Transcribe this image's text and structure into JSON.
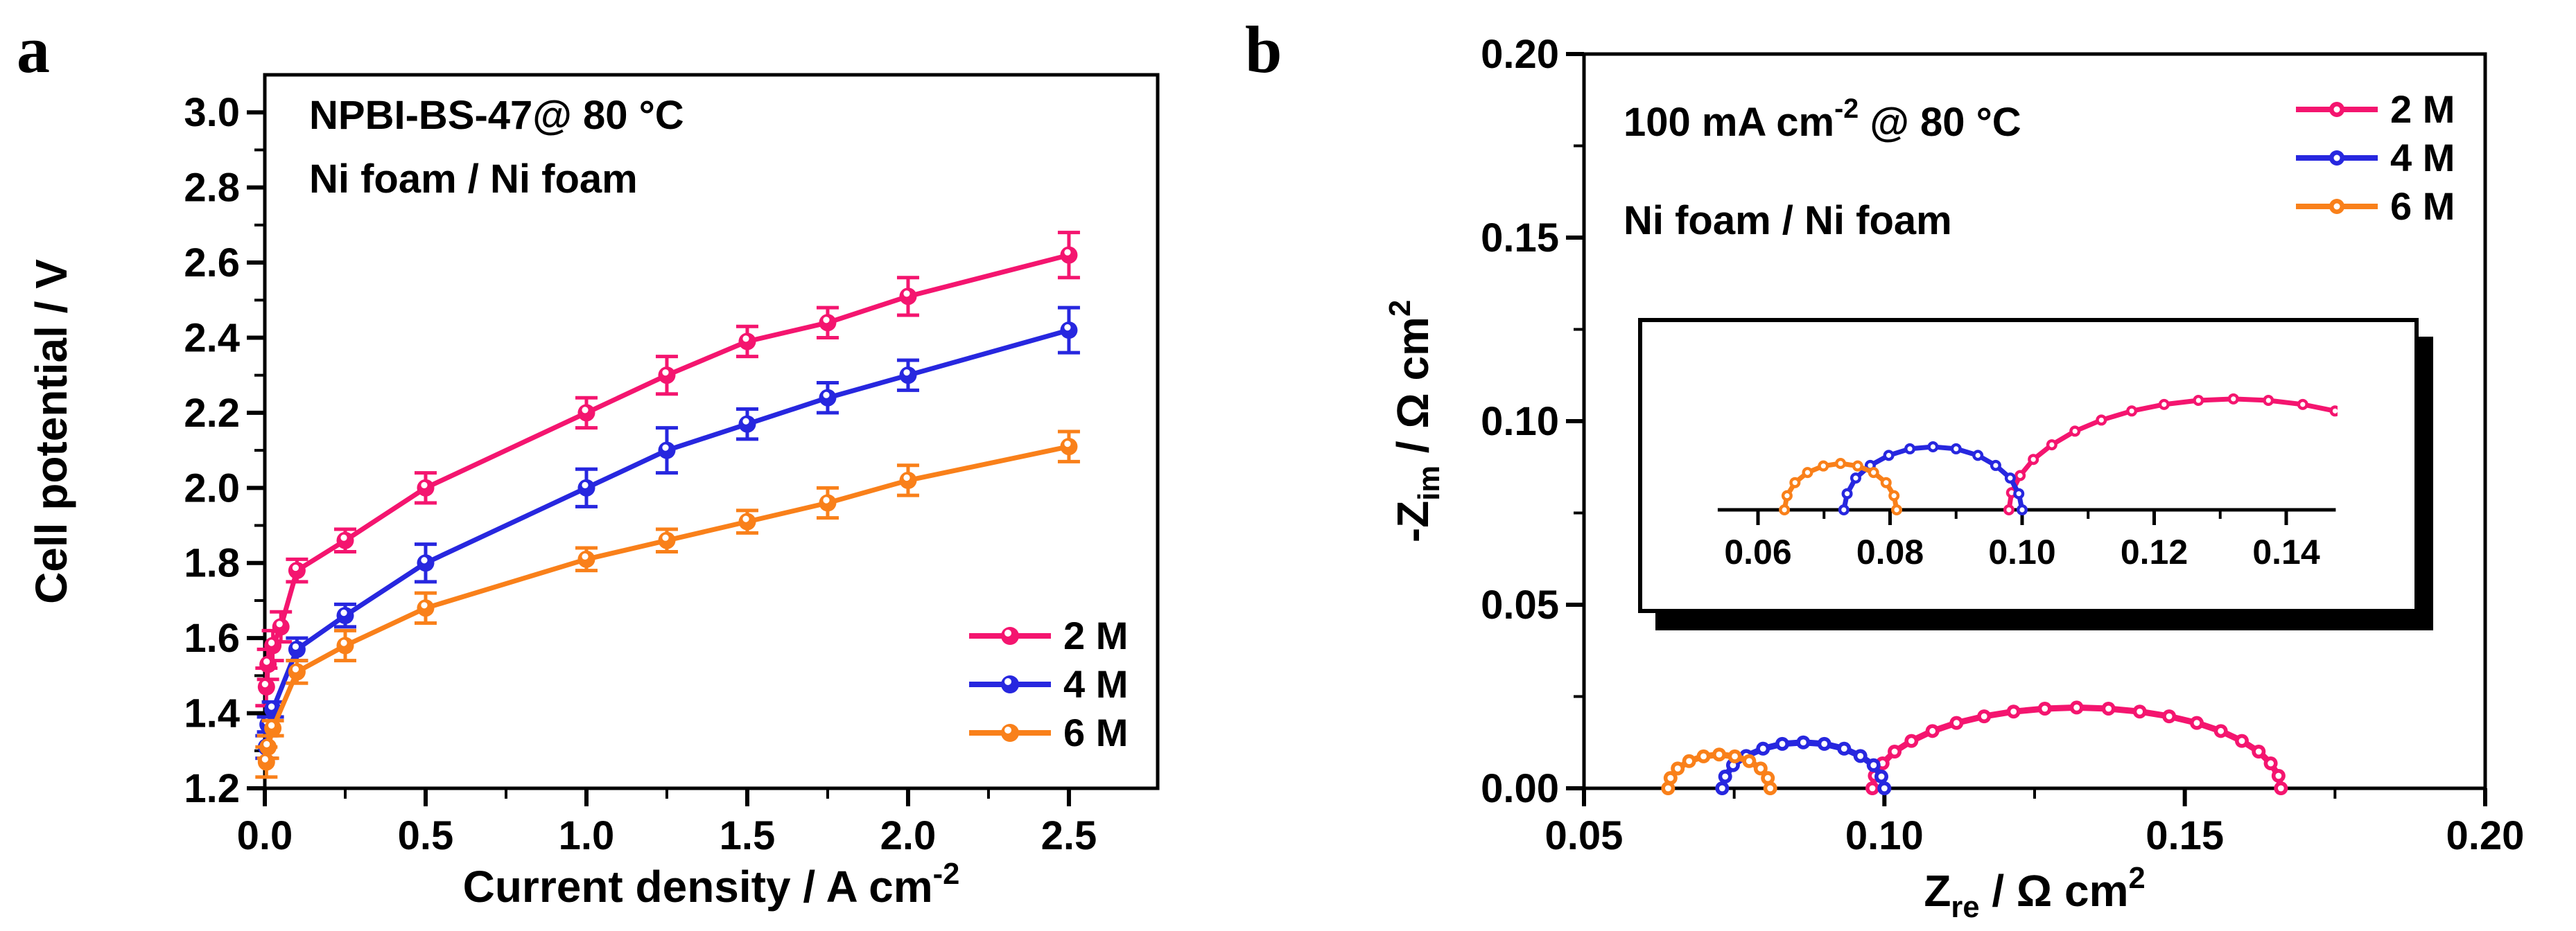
{
  "figure": {
    "background": "#ffffff",
    "panels": [
      {
        "letter": "a"
      },
      {
        "letter": "b"
      }
    ]
  },
  "chart_data": [
    {
      "id": "a",
      "type": "line",
      "annotations": [
        "NPBI-BS-47@ 80 °C",
        "Ni foam / Ni foam"
      ],
      "xlabel": "Current density / A cm⁻²",
      "xlabel_rich": [
        [
          "Current density / A cm",
          0
        ],
        [
          "-2",
          -1
        ]
      ],
      "ylabel": "Cell potential / V",
      "xlim": [
        0,
        2.776
      ],
      "ylim": [
        1.2,
        3.1
      ],
      "xticks": [
        0,
        0.5,
        1.0,
        1.5,
        2.0,
        2.5
      ],
      "xtick_labels": [
        "0.0",
        "0.5",
        "1.0",
        "1.5",
        "2.0",
        "2.5"
      ],
      "xminor": [
        0.25,
        0.75,
        1.25,
        1.75,
        2.25
      ],
      "yticks": [
        1.2,
        1.4,
        1.6,
        1.8,
        2.0,
        2.2,
        2.4,
        2.6,
        2.8,
        3.0
      ],
      "ytick_labels": [
        "1.2",
        "1.4",
        "1.6",
        "1.8",
        "2.0",
        "2.2",
        "2.4",
        "2.6",
        "2.8",
        "3.0"
      ],
      "yminor": [
        1.3,
        1.5,
        1.7,
        1.9,
        2.1,
        2.3,
        2.5,
        2.7,
        2.9
      ],
      "grid": false,
      "legend_position": "lower right",
      "series": [
        {
          "name": "2 M",
          "color": "#F4156F",
          "x": [
            0.005,
            0.01,
            0.025,
            0.05,
            0.1,
            0.25,
            0.5,
            1.0,
            1.25,
            1.5,
            1.75,
            2.0,
            2.5
          ],
          "y": [
            1.47,
            1.53,
            1.58,
            1.63,
            1.78,
            1.86,
            2.0,
            2.2,
            2.3,
            2.39,
            2.44,
            2.51,
            2.62
          ],
          "err": [
            0.05,
            0.04,
            0.04,
            0.04,
            0.03,
            0.03,
            0.04,
            0.04,
            0.05,
            0.04,
            0.04,
            0.05,
            0.06
          ]
        },
        {
          "name": "4 M",
          "color": "#2727DF",
          "x": [
            0.005,
            0.01,
            0.025,
            0.1,
            0.25,
            0.5,
            1.0,
            1.25,
            1.5,
            1.75,
            2.0,
            2.5
          ],
          "y": [
            1.31,
            1.37,
            1.41,
            1.57,
            1.66,
            1.8,
            2.0,
            2.1,
            2.17,
            2.24,
            2.3,
            2.42
          ],
          "err": [
            0.03,
            0.02,
            0.02,
            0.03,
            0.03,
            0.05,
            0.05,
            0.06,
            0.04,
            0.04,
            0.04,
            0.06
          ]
        },
        {
          "name": "6 M",
          "color": "#F9801A",
          "x": [
            0.005,
            0.01,
            0.025,
            0.1,
            0.25,
            0.5,
            1.0,
            1.25,
            1.5,
            1.75,
            2.0,
            2.5
          ],
          "y": [
            1.27,
            1.31,
            1.36,
            1.51,
            1.58,
            1.68,
            1.81,
            1.86,
            1.91,
            1.96,
            2.02,
            2.11
          ],
          "err": [
            0.04,
            0.03,
            0.02,
            0.03,
            0.04,
            0.04,
            0.03,
            0.03,
            0.03,
            0.04,
            0.04,
            0.04
          ]
        }
      ]
    },
    {
      "id": "b",
      "type": "scatter",
      "annotations": [
        "100 mA cm⁻² @ 80 °C",
        "Ni foam / Ni foam"
      ],
      "annotation_rich": [
        [
          "100 mA cm",
          0
        ],
        [
          "-2",
          -1
        ],
        [
          " @ 80 °C",
          0
        ]
      ],
      "xlabel": "Zᵣₑ / Ω cm²",
      "xlabel_rich": [
        [
          "Z",
          0
        ],
        [
          "re",
          1
        ],
        [
          " / Ω cm",
          0
        ],
        [
          "2",
          -1
        ]
      ],
      "ylabel": "-Zᵢₘ / Ω cm²",
      "ylabel_rich": [
        [
          "-Z",
          0
        ],
        [
          "im",
          1
        ],
        [
          " / Ω cm",
          0
        ],
        [
          "2",
          -1
        ]
      ],
      "xlim": [
        0.05,
        0.2
      ],
      "ylim": [
        0,
        0.2
      ],
      "xticks": [
        0.05,
        0.1,
        0.15,
        0.2
      ],
      "xtick_labels": [
        "0.05",
        "0.10",
        "0.15",
        "0.20"
      ],
      "xminor": [
        0.075,
        0.125,
        0.175
      ],
      "yticks": [
        0,
        0.05,
        0.1,
        0.15,
        0.2
      ],
      "ytick_labels": [
        "0.00",
        "0.05",
        "0.10",
        "0.15",
        "0.20"
      ],
      "yminor": [
        0.025,
        0.075,
        0.125,
        0.175
      ],
      "grid": false,
      "legend_position": "upper right",
      "series": [
        {
          "name": "2 M",
          "color": "#F4156F",
          "x": [
            0.098,
            0.0984,
            0.0997,
            0.1017,
            0.1045,
            0.108,
            0.112,
            0.1166,
            0.1215,
            0.1267,
            0.132,
            0.1373,
            0.1425,
            0.1474,
            0.152,
            0.156,
            0.1595,
            0.1623,
            0.1643,
            0.1656,
            0.166
          ],
          "y": [
            0.0,
            0.0034,
            0.0068,
            0.01,
            0.0129,
            0.0156,
            0.0178,
            0.0196,
            0.0209,
            0.0217,
            0.022,
            0.0217,
            0.0209,
            0.0196,
            0.0178,
            0.0156,
            0.0129,
            0.01,
            0.0068,
            0.0034,
            0.0
          ]
        },
        {
          "name": "4 M",
          "color": "#2727DF",
          "x": [
            0.073,
            0.0735,
            0.0748,
            0.077,
            0.0798,
            0.083,
            0.0865,
            0.09,
            0.0933,
            0.096,
            0.0982,
            0.0995,
            0.1
          ],
          "y": [
            0.0,
            0.0032,
            0.0063,
            0.0088,
            0.0108,
            0.0121,
            0.0125,
            0.0121,
            0.0108,
            0.0088,
            0.0063,
            0.0032,
            0.0
          ]
        },
        {
          "name": "6 M",
          "color": "#F9801A",
          "x": [
            0.064,
            0.0644,
            0.0656,
            0.0675,
            0.0699,
            0.0725,
            0.0751,
            0.0775,
            0.0794,
            0.0806,
            0.081
          ],
          "y": [
            0.0,
            0.0028,
            0.0054,
            0.0074,
            0.0087,
            0.0092,
            0.0087,
            0.0074,
            0.0054,
            0.0028,
            0.0
          ]
        }
      ],
      "inset": {
        "xlim": [
          0.0539,
          0.1475
        ],
        "xticks": [
          0.06,
          0.08,
          0.1,
          0.12,
          0.14
        ],
        "xtick_labels": [
          "0.06",
          "0.08",
          "0.10",
          "0.12",
          "0.14"
        ],
        "xminor": [
          0.07,
          0.09,
          0.11,
          0.13
        ],
        "y_zoom_factor": 1.37
      }
    }
  ]
}
